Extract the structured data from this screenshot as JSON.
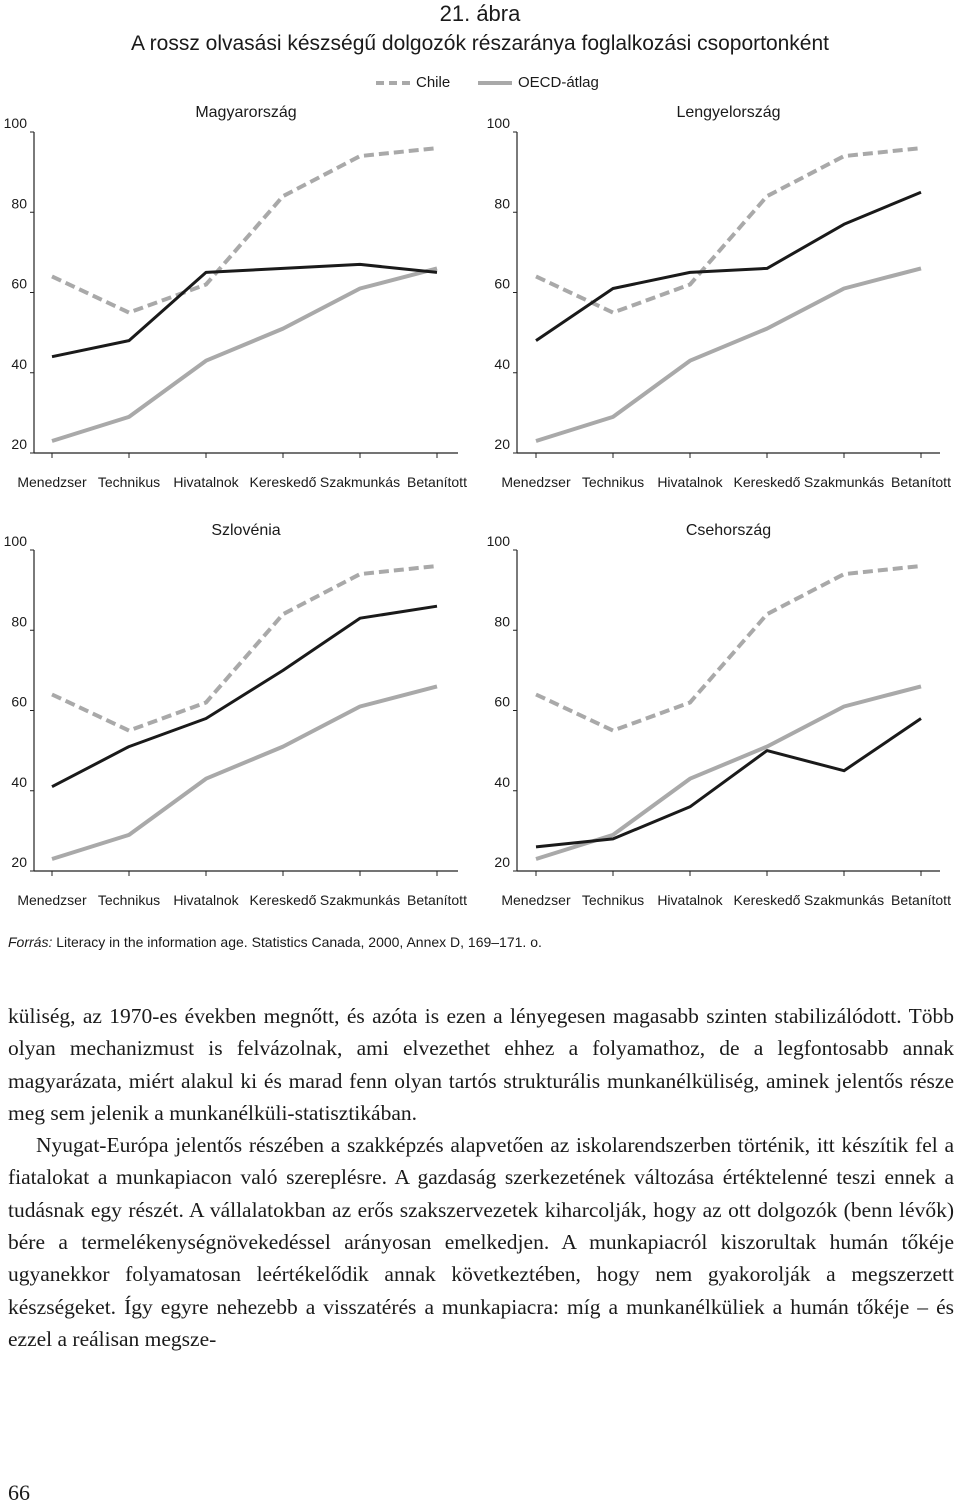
{
  "figure": {
    "number": "21. ábra",
    "title": "A rossz olvasási készségű dolgozók részaránya foglalkozási csoportonként"
  },
  "legend": {
    "chile": "Chile",
    "oecd": "OECD-átlag"
  },
  "colors": {
    "country": "#1a1a1a",
    "chile": "#a9a9a9",
    "oecd": "#a9a9a9"
  },
  "chart_data": [
    {
      "type": "line",
      "title": "Magyarország",
      "categories": [
        "Menedzser",
        "Technikus",
        "Hivatalnok",
        "Kereskedő",
        "Szakmunkás",
        "Betanított"
      ],
      "yticks": [
        "20",
        "40",
        "60",
        "80",
        "100"
      ],
      "ylim": [
        20,
        100
      ],
      "grid": false,
      "legend_position": "top",
      "series": [
        {
          "name": "Chile",
          "values": [
            64,
            55,
            62,
            84,
            94,
            96
          ]
        },
        {
          "name": "OECD-átlag",
          "values": [
            23,
            29,
            43,
            51,
            61,
            66
          ]
        },
        {
          "values": [
            44,
            48,
            65,
            66,
            67,
            65
          ]
        }
      ]
    },
    {
      "type": "line",
      "title": "Lengyelország",
      "categories": [
        "Menedzser",
        "Technikus",
        "Hivatalnok",
        "Kereskedő",
        "Szakmunkás",
        "Betanított"
      ],
      "yticks": [
        "20",
        "40",
        "60",
        "80",
        "100"
      ],
      "ylim": [
        20,
        100
      ],
      "grid": false,
      "legend_position": "top",
      "series": [
        {
          "name": "Chile",
          "values": [
            64,
            55,
            62,
            84,
            94,
            96
          ]
        },
        {
          "name": "OECD-átlag",
          "values": [
            23,
            29,
            43,
            51,
            61,
            66
          ]
        },
        {
          "values": [
            48,
            61,
            65,
            66,
            77,
            85
          ]
        }
      ]
    },
    {
      "type": "line",
      "title": "Szlovénia",
      "categories": [
        "Menedzser",
        "Technikus",
        "Hivatalnok",
        "Kereskedő",
        "Szakmunkás",
        "Betanított"
      ],
      "yticks": [
        "20",
        "40",
        "60",
        "80",
        "100"
      ],
      "ylim": [
        20,
        100
      ],
      "grid": false,
      "series": [
        {
          "name": "Chile",
          "values": [
            64,
            55,
            62,
            84,
            94,
            96
          ]
        },
        {
          "name": "OECD-átlag",
          "values": [
            23,
            29,
            43,
            51,
            61,
            66
          ]
        },
        {
          "values": [
            41,
            51,
            58,
            70,
            83,
            86
          ]
        }
      ]
    },
    {
      "type": "line",
      "title": "Csehország",
      "categories": [
        "Menedzser",
        "Technikus",
        "Hivatalnok",
        "Kereskedő",
        "Szakmunkás",
        "Betanított"
      ],
      "yticks": [
        "20",
        "40",
        "60",
        "80",
        "100"
      ],
      "ylim": [
        20,
        100
      ],
      "grid": false,
      "series": [
        {
          "name": "Chile",
          "values": [
            64,
            55,
            62,
            84,
            94,
            96
          ]
        },
        {
          "name": "OECD-átlag",
          "values": [
            23,
            29,
            43,
            51,
            61,
            66
          ]
        },
        {
          "values": [
            26,
            28,
            36,
            50,
            45,
            58
          ]
        }
      ]
    }
  ],
  "source": {
    "label": "Forrás:",
    "text": " Literacy in the information age. Statistics Canada, 2000, Annex D, 169–171. o."
  },
  "body": {
    "p1": "küliség, az 1970-es években megnőtt, és azóta is ezen a lényegesen magasabb szinten stabilizálódott. Több olyan mechanizmust is felvázolnak, ami elvezethet ehhez a folyamathoz, de a legfontosabb annak magyarázata, miért alakul ki és marad fenn olyan tartós strukturális munkanélküliség, aminek jelentős része meg sem jelenik a munkanélküli-statisztikában.",
    "p2": "Nyugat-Európa jelentős részében a szakképzés alapvetően az iskolarendszerben történik, itt készítik fel a fiatalokat a munkapiacon való szereplésre. A gazdaság szerkezetének változása értéktelenné teszi ennek a tudásnak egy részét. A vállalatokban az erős szakszervezetek kiharcolják, hogy az ott dolgozók (benn lévők) bére a termelékenységnövekedéssel arányosan emelkedjen. A munkapiacról kiszorultak humán tőkéje ugyanekkor folyamatosan leértékelődik annak következtében, hogy nem gyakorolják a megszerzett készségeket. Így egyre nehezebb a visszatérés a munkapiacra: míg a munkanélküliek a humán tőkéje – és ezzel a reálisan megsze-"
  },
  "page_number": "66"
}
